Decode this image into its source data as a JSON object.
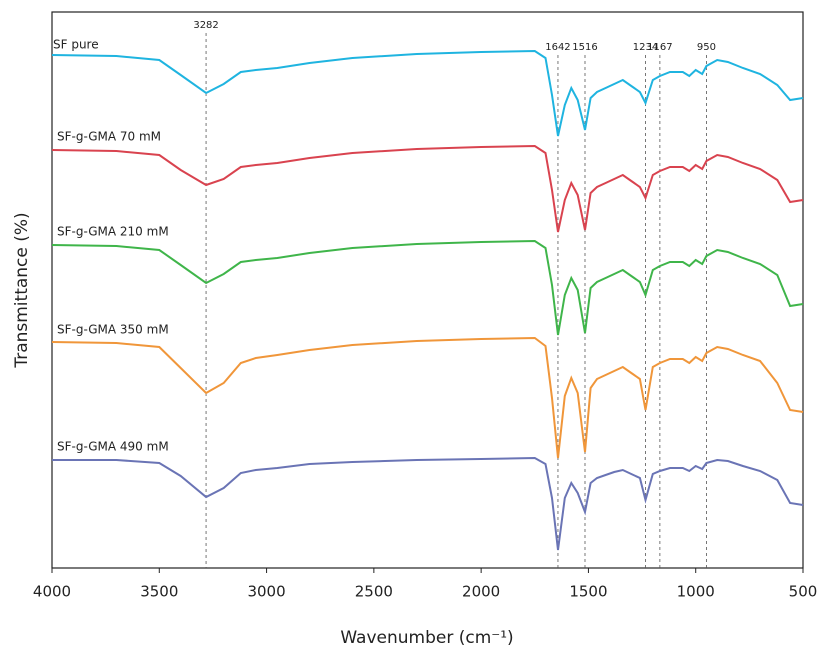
{
  "chart_data": {
    "type": "line",
    "xlabel": "Wavenumber (cm⁻¹)",
    "ylabel": "Transmittance (%)",
    "xlim": [
      4000,
      500
    ],
    "xticks": [
      4000,
      3500,
      3000,
      2500,
      2000,
      1500,
      1000,
      500
    ],
    "ylim": [
      0,
      556
    ],
    "reference_lines": [
      3282,
      1642,
      1516,
      1234,
      1167,
      950
    ],
    "x": [
      4000,
      3700,
      3500,
      3400,
      3282,
      3200,
      3120,
      3050,
      2950,
      2800,
      2600,
      2300,
      2000,
      1750,
      1700,
      1670,
      1642,
      1610,
      1580,
      1550,
      1516,
      1490,
      1460,
      1420,
      1380,
      1340,
      1300,
      1260,
      1234,
      1200,
      1167,
      1120,
      1060,
      1030,
      1000,
      970,
      950,
      900,
      850,
      780,
      700,
      620,
      560,
      500
    ],
    "series": [
      {
        "name": "SF pure",
        "color": "#1fb4e0",
        "values": [
          513,
          512,
          508,
          493,
          475,
          484,
          496,
          498,
          500,
          505,
          510,
          514,
          516,
          517,
          510,
          473,
          432,
          463,
          480,
          468,
          438,
          470,
          476,
          480,
          484,
          488,
          482,
          476,
          465,
          488,
          492,
          496,
          496,
          492,
          498,
          494,
          502,
          508,
          506,
          500,
          494,
          483,
          468,
          470
        ]
      },
      {
        "name": "SF-g-GMA 70 mM",
        "color": "#d9434f",
        "values": [
          418,
          417,
          413,
          398,
          383,
          389,
          401,
          403,
          405,
          410,
          415,
          419,
          421,
          422,
          415,
          378,
          336,
          368,
          385,
          373,
          338,
          375,
          381,
          385,
          389,
          393,
          387,
          381,
          370,
          393,
          397,
          401,
          401,
          397,
          403,
          399,
          407,
          413,
          411,
          405,
          399,
          388,
          366,
          368
        ]
      },
      {
        "name": "SF-g-GMA 210 mM",
        "color": "#3fb54a",
        "values": [
          323,
          322,
          318,
          303,
          285,
          294,
          306,
          308,
          310,
          315,
          320,
          324,
          326,
          327,
          320,
          283,
          233,
          273,
          290,
          278,
          235,
          280,
          286,
          290,
          294,
          298,
          292,
          286,
          273,
          298,
          302,
          306,
          306,
          302,
          308,
          304,
          312,
          318,
          316,
          310,
          304,
          293,
          262,
          264
        ]
      },
      {
        "name": "SF-g-GMA 350 mM",
        "color": "#f0963a",
        "values": [
          226,
          225,
          221,
          200,
          175,
          185,
          205,
          210,
          213,
          218,
          223,
          227,
          229,
          230,
          222,
          170,
          110,
          172,
          190,
          175,
          116,
          180,
          189,
          193,
          197,
          201,
          195,
          189,
          158,
          201,
          205,
          209,
          209,
          205,
          211,
          207,
          215,
          221,
          219,
          213,
          207,
          185,
          158,
          156
        ]
      },
      {
        "name": "SF-g-GMA 490 mM",
        "color": "#6a74b5",
        "values": [
          108,
          108,
          105,
          92,
          71,
          80,
          95,
          98,
          100,
          104,
          106,
          108,
          109,
          110,
          104,
          70,
          18,
          70,
          85,
          75,
          56,
          85,
          90,
          93,
          96,
          98,
          94,
          90,
          68,
          94,
          97,
          100,
          100,
          97,
          102,
          99,
          105,
          108,
          107,
          102,
          97,
          88,
          65,
          63
        ]
      }
    ]
  }
}
